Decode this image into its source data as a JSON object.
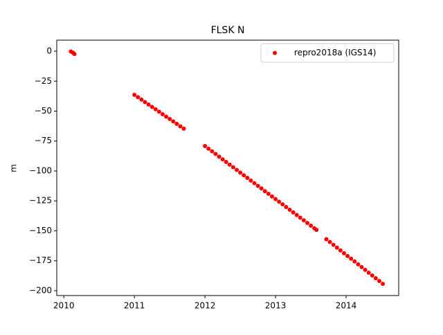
{
  "chart_data": {
    "type": "scatter",
    "title": "FLSK N",
    "ylabel": "m",
    "x": [
      2010.1,
      2010.13,
      2010.15,
      2011.0,
      2011.05,
      2011.1,
      2011.15,
      2011.2,
      2011.25,
      2011.3,
      2011.35,
      2011.4,
      2011.45,
      2011.5,
      2011.55,
      2011.6,
      2011.65,
      2011.7,
      2012.0,
      2012.05,
      2012.1,
      2012.15,
      2012.2,
      2012.25,
      2012.3,
      2012.35,
      2012.4,
      2012.45,
      2012.5,
      2012.55,
      2012.6,
      2012.65,
      2012.7,
      2012.75,
      2012.8,
      2012.85,
      2012.9,
      2012.95,
      2013.0,
      2013.05,
      2013.1,
      2013.15,
      2013.2,
      2013.25,
      2013.3,
      2013.35,
      2013.4,
      2013.45,
      2013.5,
      2013.55,
      2013.58,
      2013.72,
      2013.77,
      2013.82,
      2013.87,
      2013.92,
      2013.97,
      2014.02,
      2014.07,
      2014.12,
      2014.17,
      2014.22,
      2014.27,
      2014.32,
      2014.37,
      2014.42,
      2014.47,
      2014.52
    ],
    "series": [
      {
        "name": "repro2018a (IGS14)",
        "color": "#ff0000",
        "values": [
          -0.3,
          -1.3,
          -2.3,
          -36.4,
          -38.4,
          -40.4,
          -42.5,
          -44.5,
          -46.5,
          -48.5,
          -50.5,
          -52.6,
          -54.6,
          -56.6,
          -58.6,
          -60.6,
          -62.7,
          -64.7,
          -79.2,
          -81.4,
          -83.6,
          -85.8,
          -88.1,
          -90.3,
          -92.5,
          -94.7,
          -96.9,
          -99.1,
          -101.4,
          -103.6,
          -105.8,
          -108.0,
          -110.2,
          -112.4,
          -114.6,
          -116.9,
          -119.1,
          -121.3,
          -123.5,
          -125.7,
          -127.9,
          -130.1,
          -132.4,
          -134.6,
          -136.8,
          -139.0,
          -141.2,
          -143.4,
          -145.7,
          -147.9,
          -149.2,
          -157.0,
          -159.3,
          -161.7,
          -164.0,
          -166.3,
          -168.7,
          -171.0,
          -173.3,
          -175.6,
          -178.0,
          -180.3,
          -182.6,
          -185.0,
          -187.3,
          -189.6,
          -191.9,
          -194.3
        ]
      }
    ],
    "xlim": [
      2009.9,
      2014.745
    ],
    "ylim": [
      -204.05,
      9.25
    ],
    "xticks": [
      2010,
      2011,
      2012,
      2013,
      2014
    ],
    "yticks": [
      {
        "value": 0,
        "label": "0"
      },
      {
        "value": -25,
        "label": "−25"
      },
      {
        "value": -50,
        "label": "−50"
      },
      {
        "value": -75,
        "label": "−75"
      },
      {
        "value": -100,
        "label": "−100"
      },
      {
        "value": -125,
        "label": "−125"
      },
      {
        "value": -150,
        "label": "−150"
      },
      {
        "value": -175,
        "label": "−175"
      },
      {
        "value": -200,
        "label": "−200"
      }
    ],
    "legend": "upper right"
  }
}
